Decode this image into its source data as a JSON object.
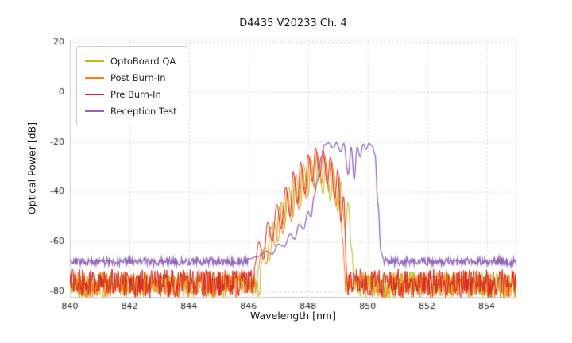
{
  "chart_data": {
    "type": "line",
    "title": "D4435 V20233 Ch. 4",
    "xlabel": "Wavelength [nm]",
    "ylabel": "Optical Power [dB]",
    "xlim": [
      840,
      855
    ],
    "ylim": [
      -82.5,
      21
    ],
    "xticks": [
      840,
      842,
      844,
      846,
      848,
      850,
      852,
      854
    ],
    "yticks": [
      20,
      0,
      -20,
      -40,
      -60,
      -80
    ],
    "grid": true,
    "grid_color": "#cfcfcf",
    "spine_color": "#cccccc",
    "legend_position": "upper-left",
    "noise_seed": 42,
    "series": [
      {
        "name": "OptoBoard QA",
        "color": "#bcbd22",
        "noise": {
          "lo": -82.5,
          "hi": -72
        },
        "signal": [
          [
            846.4,
            -70
          ],
          [
            846.55,
            -62
          ],
          [
            846.7,
            -68
          ],
          [
            846.85,
            -52
          ],
          [
            847.0,
            -60
          ],
          [
            847.1,
            -44
          ],
          [
            847.2,
            -55
          ],
          [
            847.35,
            -38
          ],
          [
            847.5,
            -50
          ],
          [
            847.6,
            -33
          ],
          [
            847.75,
            -46
          ],
          [
            847.85,
            -29
          ],
          [
            848.0,
            -42
          ],
          [
            848.1,
            -27
          ],
          [
            848.25,
            -40
          ],
          [
            848.35,
            -26
          ],
          [
            848.5,
            -41
          ],
          [
            848.6,
            -28
          ],
          [
            848.75,
            -44
          ],
          [
            848.85,
            -31
          ],
          [
            849.0,
            -48
          ],
          [
            849.1,
            -36
          ],
          [
            849.25,
            -55
          ],
          [
            849.35,
            -44
          ],
          [
            849.45,
            -62
          ],
          [
            849.55,
            -74
          ]
        ]
      },
      {
        "name": "Post Burn-In",
        "color": "#ff7f0e",
        "noise": {
          "lo": -82.5,
          "hi": -72
        },
        "signal": [
          [
            846.3,
            -72
          ],
          [
            846.45,
            -63
          ],
          [
            846.6,
            -69
          ],
          [
            846.75,
            -54
          ],
          [
            846.9,
            -62
          ],
          [
            847.05,
            -46
          ],
          [
            847.15,
            -57
          ],
          [
            847.3,
            -40
          ],
          [
            847.45,
            -52
          ],
          [
            847.55,
            -34
          ],
          [
            847.7,
            -47
          ],
          [
            847.8,
            -30
          ],
          [
            847.95,
            -43
          ],
          [
            848.05,
            -26
          ],
          [
            848.2,
            -38
          ],
          [
            848.3,
            -24
          ],
          [
            848.45,
            -37
          ],
          [
            848.55,
            -25
          ],
          [
            848.7,
            -40
          ],
          [
            848.8,
            -28
          ],
          [
            848.95,
            -46
          ],
          [
            849.05,
            -34
          ],
          [
            849.15,
            -58
          ],
          [
            849.25,
            -73
          ]
        ]
      },
      {
        "name": "Pre Burn-In",
        "color": "#d62728",
        "noise": {
          "lo": -82.5,
          "hi": -71
        },
        "signal": [
          [
            846.2,
            -70
          ],
          [
            846.35,
            -60
          ],
          [
            846.5,
            -67
          ],
          [
            846.65,
            -52
          ],
          [
            846.8,
            -60
          ],
          [
            846.95,
            -45
          ],
          [
            847.1,
            -55
          ],
          [
            847.25,
            -38
          ],
          [
            847.4,
            -50
          ],
          [
            847.5,
            -32
          ],
          [
            847.65,
            -45
          ],
          [
            847.75,
            -28
          ],
          [
            847.9,
            -41
          ],
          [
            848.0,
            -25
          ],
          [
            848.15,
            -36
          ],
          [
            848.25,
            -22.5
          ],
          [
            848.4,
            -34
          ],
          [
            848.5,
            -23
          ],
          [
            848.65,
            -37
          ],
          [
            848.75,
            -26
          ],
          [
            848.9,
            -43
          ],
          [
            849.0,
            -31
          ],
          [
            849.1,
            -52
          ],
          [
            849.2,
            -42
          ],
          [
            849.3,
            -72
          ]
        ]
      },
      {
        "name": "Reception Test",
        "color": "#9467bd",
        "noise": {
          "lo": -69.6,
          "hi": -66.4
        },
        "signal": [
          [
            846.0,
            -67
          ],
          [
            846.3,
            -66
          ],
          [
            846.6,
            -64
          ],
          [
            846.8,
            -65
          ],
          [
            847.0,
            -61
          ],
          [
            847.2,
            -62
          ],
          [
            847.4,
            -57
          ],
          [
            847.55,
            -59
          ],
          [
            847.7,
            -53
          ],
          [
            847.85,
            -55
          ],
          [
            848.0,
            -48
          ],
          [
            848.1,
            -50
          ],
          [
            848.2,
            -42
          ],
          [
            848.3,
            -36
          ],
          [
            848.45,
            -26
          ],
          [
            848.55,
            -21
          ],
          [
            848.7,
            -20.3
          ],
          [
            848.85,
            -22.5
          ],
          [
            848.95,
            -20.2
          ],
          [
            849.1,
            -24
          ],
          [
            849.2,
            -20.5
          ],
          [
            849.35,
            -33
          ],
          [
            849.45,
            -22
          ],
          [
            849.55,
            -35
          ],
          [
            849.65,
            -22
          ],
          [
            849.75,
            -26
          ],
          [
            849.85,
            -20.8
          ],
          [
            849.95,
            -23
          ],
          [
            850.05,
            -20.5
          ],
          [
            850.15,
            -21.5
          ],
          [
            850.25,
            -25
          ],
          [
            850.35,
            -45
          ],
          [
            850.45,
            -64
          ],
          [
            850.55,
            -67.5
          ]
        ]
      }
    ]
  }
}
